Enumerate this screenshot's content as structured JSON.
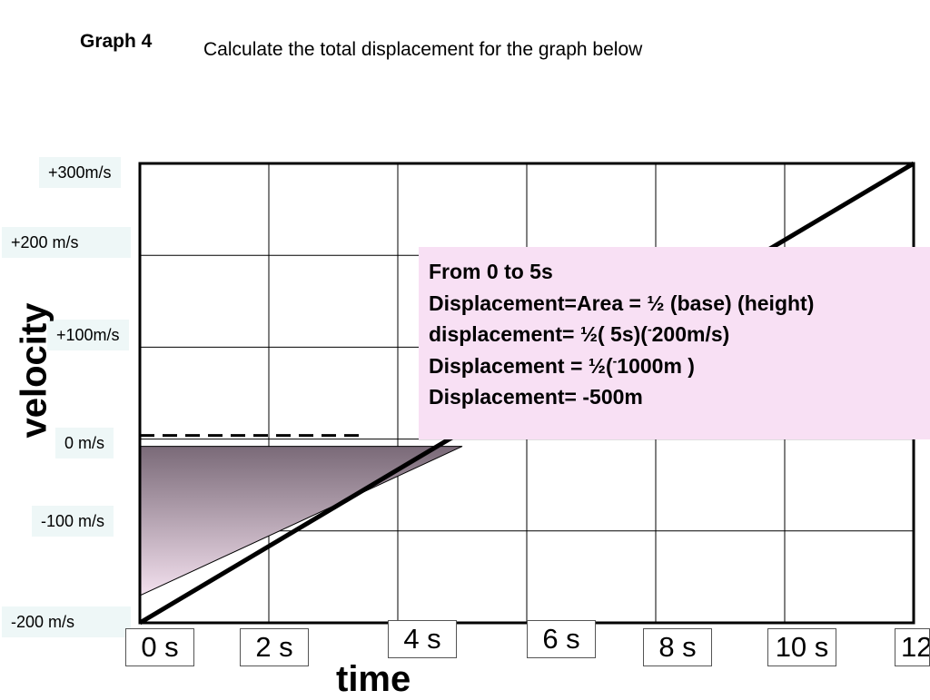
{
  "heading": {
    "graph_label": "Graph 4",
    "instruction": "Calculate the total displacement for the graph below"
  },
  "chart_data": {
    "type": "line",
    "x": [
      0,
      12
    ],
    "y": [
      -200,
      300
    ],
    "xlim": [
      0,
      12
    ],
    "ylim": [
      -200,
      300
    ],
    "grid": true,
    "xlabel": "time",
    "ylabel": "velocity",
    "x_ticks": [
      "0 s",
      "2 s",
      "4 s",
      "6 s",
      "8 s",
      "10 s",
      "12"
    ],
    "y_ticks": [
      "+300m/s",
      "+200 m/s",
      "+100m/s",
      "0 m/s",
      "-100 m/s",
      "-200 m/s"
    ],
    "shaded_region": {
      "x": [
        0,
        0,
        5
      ],
      "y": [
        0,
        -200,
        0
      ]
    },
    "reference_line": {
      "y": 0,
      "style": "dashed"
    }
  },
  "annotation": {
    "line1": "From  0 to 5s",
    "line2": "Displacement=Area = ½ (base) (height)",
    "line3_pre": "displacement= ½( 5s)(",
    "line3_sup": "-",
    "line3_post": "200m/s)",
    "line4_pre": "Displacement = ½(",
    "line4_sup": "-",
    "line4_post": "1000m )",
    "line5": "Displacement= -500m"
  },
  "colors": {
    "shade_top": "#7a6a78",
    "shade_bottom": "#f3e0ee",
    "annotation_bg": "#f8e0f4",
    "tick_label_bg": "#eef7f7"
  }
}
